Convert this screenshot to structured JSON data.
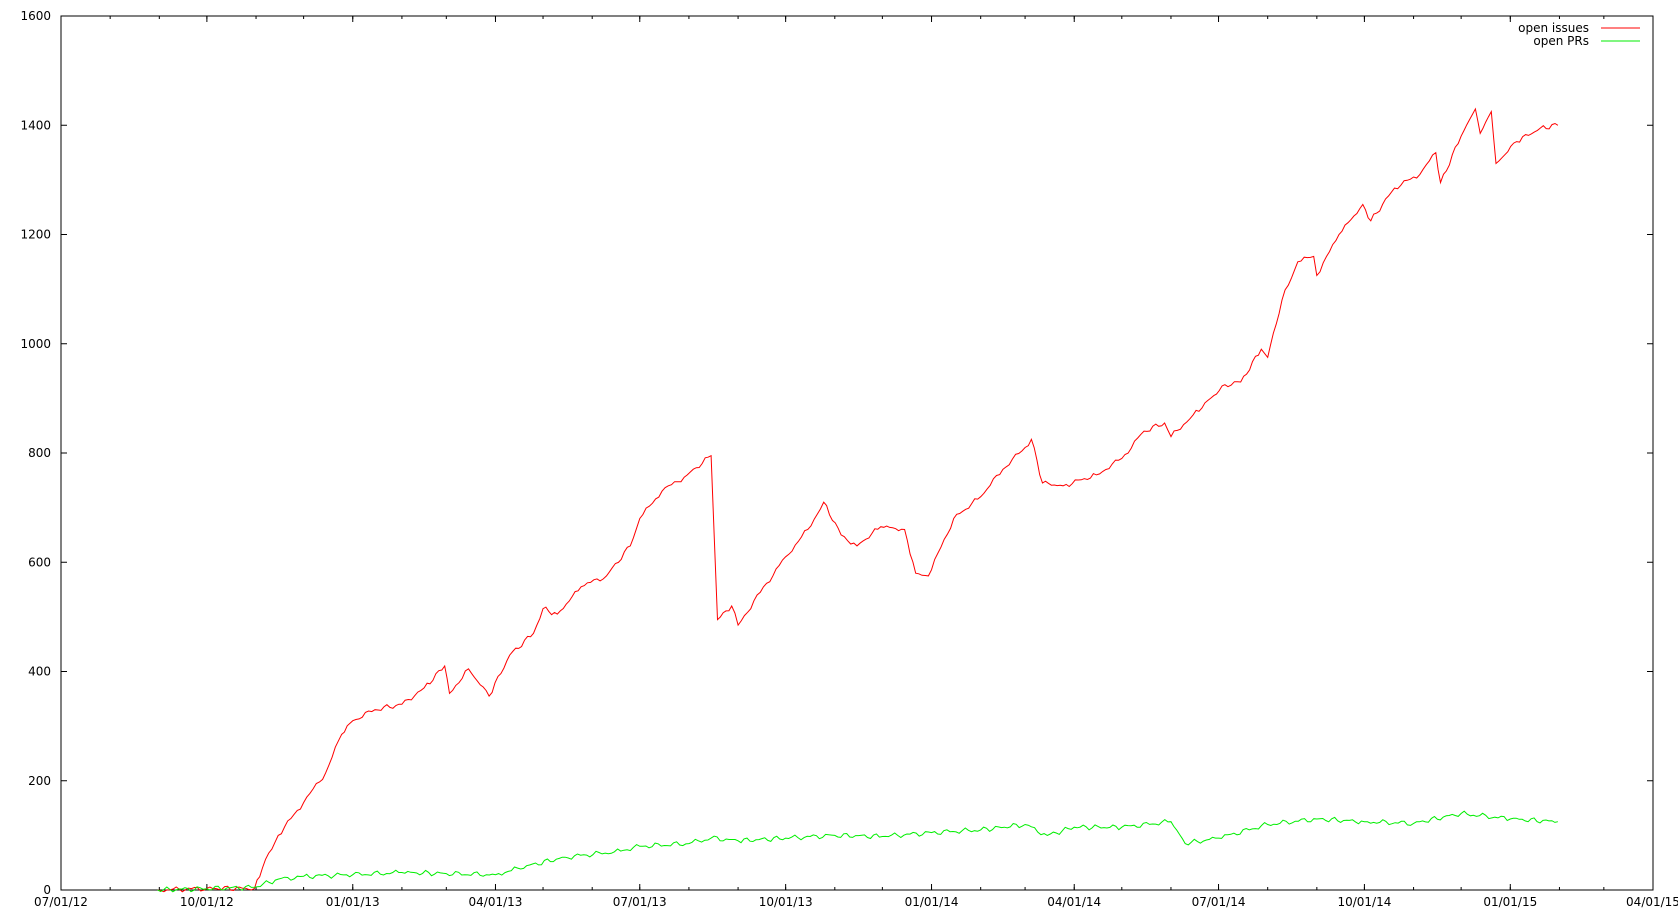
{
  "chart_data": {
    "type": "line",
    "title": "",
    "xlabel": "",
    "ylabel": "",
    "grid": false,
    "legend_position": "top-right",
    "xlim": [
      "07/01/12",
      "04/01/15"
    ],
    "ylim": [
      0,
      1600
    ],
    "x_tick_labels": [
      "07/01/12",
      "10/01/12",
      "01/01/13",
      "04/01/13",
      "07/01/13",
      "10/01/13",
      "01/01/14",
      "04/01/14",
      "07/01/14",
      "10/01/14",
      "01/01/15",
      "04/01/15"
    ],
    "y_tick_labels": [
      "0",
      "200",
      "400",
      "600",
      "800",
      "1000",
      "1200",
      "1400",
      "1600"
    ],
    "series": [
      {
        "name": "open issues",
        "color": "#ff0000",
        "points": [
          [
            "2012-08-31",
            0
          ],
          [
            "2012-10-01",
            3
          ],
          [
            "2012-10-31",
            3
          ],
          [
            "2012-11-05",
            40
          ],
          [
            "2012-11-15",
            100
          ],
          [
            "2012-12-01",
            160
          ],
          [
            "2012-12-15",
            215
          ],
          [
            "2012-12-25",
            285
          ],
          [
            "2013-01-01",
            310
          ],
          [
            "2013-01-15",
            330
          ],
          [
            "2013-02-01",
            340
          ],
          [
            "2013-02-15",
            370
          ],
          [
            "2013-02-28",
            410
          ],
          [
            "2013-03-03",
            360
          ],
          [
            "2013-03-15",
            405
          ],
          [
            "2013-03-28",
            355
          ],
          [
            "2013-04-10",
            430
          ],
          [
            "2013-04-25",
            470
          ],
          [
            "2013-05-01",
            515
          ],
          [
            "2013-05-10",
            505
          ],
          [
            "2013-05-25",
            555
          ],
          [
            "2013-06-10",
            575
          ],
          [
            "2013-06-25",
            630
          ],
          [
            "2013-07-01",
            680
          ],
          [
            "2013-07-15",
            730
          ],
          [
            "2013-07-31",
            760
          ],
          [
            "2013-08-15",
            795
          ],
          [
            "2013-08-19",
            495
          ],
          [
            "2013-08-28",
            520
          ],
          [
            "2013-09-01",
            485
          ],
          [
            "2013-09-15",
            545
          ],
          [
            "2013-10-01",
            610
          ],
          [
            "2013-10-15",
            660
          ],
          [
            "2013-10-25",
            710
          ],
          [
            "2013-11-05",
            650
          ],
          [
            "2013-11-15",
            630
          ],
          [
            "2013-11-30",
            665
          ],
          [
            "2013-12-15",
            660
          ],
          [
            "2013-12-22",
            580
          ],
          [
            "2013-12-30",
            575
          ],
          [
            "2014-01-15",
            680
          ],
          [
            "2014-02-01",
            720
          ],
          [
            "2014-02-15",
            770
          ],
          [
            "2014-03-01",
            810
          ],
          [
            "2014-03-05",
            825
          ],
          [
            "2014-03-12",
            745
          ],
          [
            "2014-03-25",
            740
          ],
          [
            "2014-04-15",
            760
          ],
          [
            "2014-05-01",
            790
          ],
          [
            "2014-05-15",
            840
          ],
          [
            "2014-05-28",
            855
          ],
          [
            "2014-06-01",
            830
          ],
          [
            "2014-06-15",
            870
          ],
          [
            "2014-06-28",
            905
          ],
          [
            "2014-07-05",
            925
          ],
          [
            "2014-07-15",
            930
          ],
          [
            "2014-07-28",
            990
          ],
          [
            "2014-08-01",
            975
          ],
          [
            "2014-08-10",
            1080
          ],
          [
            "2014-08-20",
            1150
          ],
          [
            "2014-08-30",
            1160
          ],
          [
            "2014-09-01",
            1125
          ],
          [
            "2014-09-15",
            1200
          ],
          [
            "2014-09-30",
            1255
          ],
          [
            "2014-10-05",
            1225
          ],
          [
            "2014-10-20",
            1285
          ],
          [
            "2014-11-05",
            1310
          ],
          [
            "2014-11-15",
            1350
          ],
          [
            "2014-11-18",
            1295
          ],
          [
            "2014-12-01",
            1380
          ],
          [
            "2014-12-10",
            1430
          ],
          [
            "2014-12-13",
            1385
          ],
          [
            "2014-12-20",
            1425
          ],
          [
            "2014-12-23",
            1330
          ],
          [
            "2015-01-05",
            1370
          ],
          [
            "2015-01-20",
            1395
          ],
          [
            "2015-01-31",
            1400
          ]
        ]
      },
      {
        "name": "open PRs",
        "color": "#00ee00",
        "points": [
          [
            "2012-08-31",
            0
          ],
          [
            "2012-10-31",
            5
          ],
          [
            "2012-11-15",
            20
          ],
          [
            "2012-12-01",
            25
          ],
          [
            "2013-01-01",
            28
          ],
          [
            "2013-02-01",
            32
          ],
          [
            "2013-03-01",
            30
          ],
          [
            "2013-04-01",
            28
          ],
          [
            "2013-04-15",
            40
          ],
          [
            "2013-05-15",
            60
          ],
          [
            "2013-06-15",
            70
          ],
          [
            "2013-07-01",
            80
          ],
          [
            "2013-08-01",
            85
          ],
          [
            "2013-08-15",
            95
          ],
          [
            "2013-09-01",
            90
          ],
          [
            "2013-10-01",
            95
          ],
          [
            "2013-11-01",
            100
          ],
          [
            "2013-12-01",
            98
          ],
          [
            "2014-01-01",
            105
          ],
          [
            "2014-02-01",
            110
          ],
          [
            "2014-03-01",
            120
          ],
          [
            "2014-03-15",
            100
          ],
          [
            "2014-04-01",
            115
          ],
          [
            "2014-05-01",
            115
          ],
          [
            "2014-06-01",
            125
          ],
          [
            "2014-06-10",
            85
          ],
          [
            "2014-07-01",
            95
          ],
          [
            "2014-08-01",
            120
          ],
          [
            "2014-09-01",
            130
          ],
          [
            "2014-10-01",
            125
          ],
          [
            "2014-11-01",
            122
          ],
          [
            "2014-12-01",
            140
          ],
          [
            "2015-01-01",
            130
          ],
          [
            "2015-01-31",
            125
          ]
        ]
      }
    ]
  }
}
